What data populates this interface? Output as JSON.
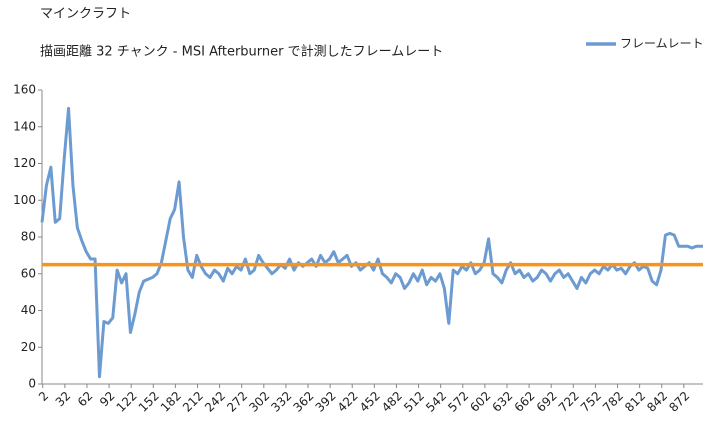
{
  "chart_data": {
    "type": "line",
    "title": "マインクラフト",
    "subtitle": "描画距離 32 チャンク  - MSI Afterburner で計測したフレームレート",
    "x": [
      1,
      7,
      13,
      19,
      25,
      31,
      37,
      43,
      49,
      55,
      61,
      67,
      73,
      79,
      85,
      91,
      97,
      103,
      109,
      115,
      121,
      127,
      133,
      139,
      145,
      151,
      157,
      163,
      169,
      175,
      181,
      187,
      193,
      199,
      205,
      211,
      217,
      223,
      229,
      235,
      241,
      247,
      253,
      259,
      265,
      271,
      277,
      283,
      289,
      295,
      301,
      307,
      313,
      319,
      325,
      331,
      337,
      343,
      349,
      355,
      361,
      367,
      373,
      379,
      385,
      391,
      397,
      403,
      409,
      415,
      421,
      427,
      433,
      439,
      445,
      451,
      457,
      463,
      469,
      475,
      481,
      487,
      493,
      499,
      505,
      511,
      517,
      523,
      529,
      535,
      541,
      547,
      553,
      559,
      565,
      571,
      577,
      583,
      589,
      595,
      601,
      607,
      613,
      619,
      625,
      631,
      637,
      643,
      649,
      655,
      661,
      667,
      673,
      679,
      685,
      691,
      697,
      703,
      709,
      715,
      721,
      727,
      733,
      739,
      745,
      751,
      757,
      763,
      769,
      775,
      781,
      787,
      793,
      799,
      805,
      811,
      817,
      823,
      829,
      835,
      841,
      847,
      853,
      859,
      865,
      871,
      877,
      883,
      889,
      895,
      898
    ],
    "series": [
      {
        "name": "フレームレート",
        "color": "#6c9bd2",
        "values": [
          88,
          108,
          118,
          88,
          90,
          122,
          150,
          108,
          85,
          78,
          72,
          68,
          68,
          4,
          34,
          33,
          36,
          62,
          55,
          60,
          28,
          38,
          50,
          56,
          57,
          58,
          60,
          66,
          78,
          90,
          95,
          110,
          80,
          62,
          58,
          70,
          64,
          60,
          58,
          62,
          60,
          56,
          63,
          60,
          64,
          62,
          68,
          60,
          62,
          70,
          66,
          63,
          60,
          62,
          65,
          63,
          68,
          62,
          66,
          64,
          66,
          68,
          64,
          70,
          66,
          68,
          72,
          66,
          68,
          70,
          64,
          66,
          62,
          64,
          66,
          62,
          68,
          60,
          58,
          55,
          60,
          58,
          52,
          55,
          60,
          56,
          62,
          54,
          58,
          56,
          60,
          52,
          33,
          62,
          60,
          64,
          62,
          66,
          60,
          62,
          66,
          79,
          60,
          58,
          55,
          62,
          66,
          60,
          62,
          58,
          60,
          56,
          58,
          62,
          60,
          56,
          60,
          62,
          58,
          60,
          56,
          52,
          58,
          55,
          60,
          62,
          60,
          64,
          62,
          65,
          62,
          63,
          60,
          64,
          66,
          62,
          64,
          63,
          56,
          54,
          62,
          81,
          82,
          81,
          75,
          75,
          75,
          74,
          75,
          75,
          75
        ]
      }
    ],
    "reference_lines": [
      {
        "value": 65,
        "color": "#f7941d"
      }
    ],
    "xlim": [
      1,
      898
    ],
    "xticks": [
      2,
      32,
      62,
      92,
      122,
      152,
      182,
      212,
      242,
      272,
      302,
      332,
      362,
      392,
      422,
      452,
      482,
      512,
      542,
      572,
      602,
      632,
      662,
      692,
      722,
      752,
      782,
      812,
      842,
      872
    ],
    "ylim": [
      0,
      160
    ],
    "yticks": [
      0,
      20,
      40,
      60,
      80,
      100,
      120,
      140,
      160
    ],
    "grid": false,
    "legend": "top-right"
  }
}
